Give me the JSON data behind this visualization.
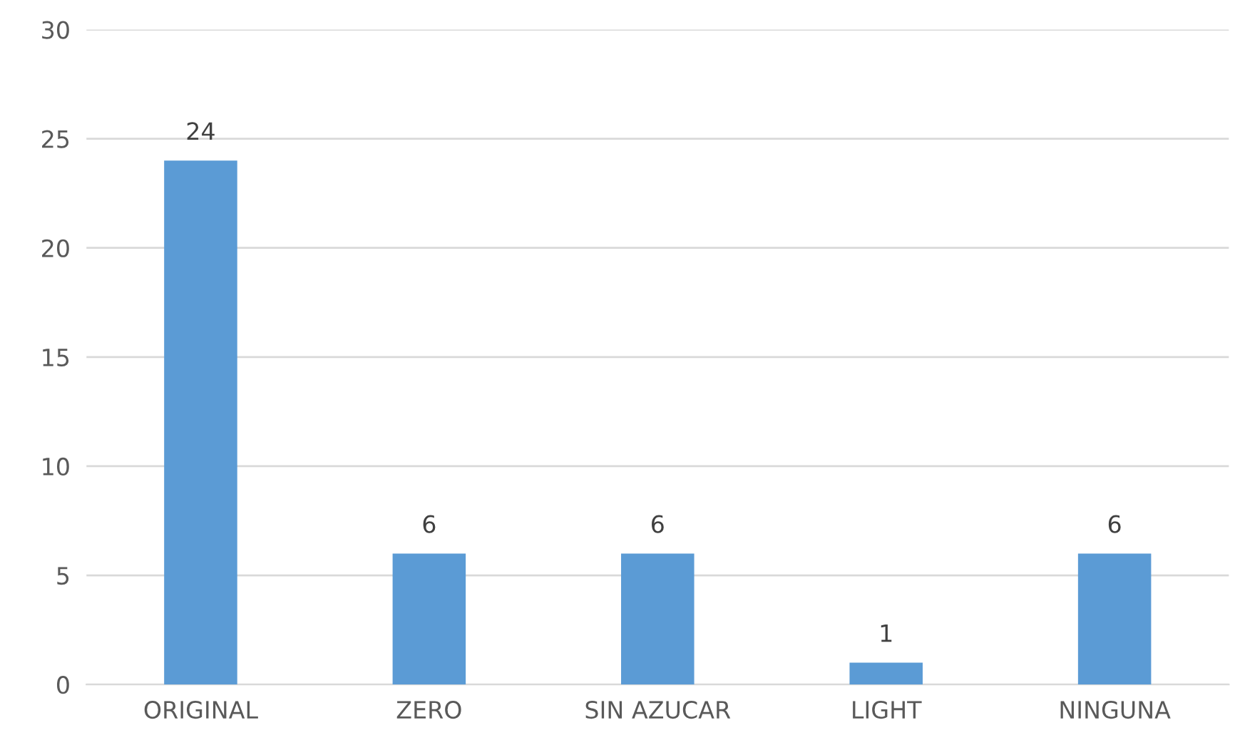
{
  "chart_data": {
    "type": "bar",
    "categories": [
      "ORIGINAL",
      "ZERO",
      "SIN AZUCAR",
      "LIGHT",
      "NINGUNA"
    ],
    "values": [
      24,
      6,
      6,
      1,
      6
    ],
    "color": "#5b9bd5",
    "ylim": [
      0,
      30
    ],
    "yticks": [
      0,
      5,
      10,
      15,
      20,
      25,
      30
    ],
    "grid": "y",
    "data_labels": true
  }
}
